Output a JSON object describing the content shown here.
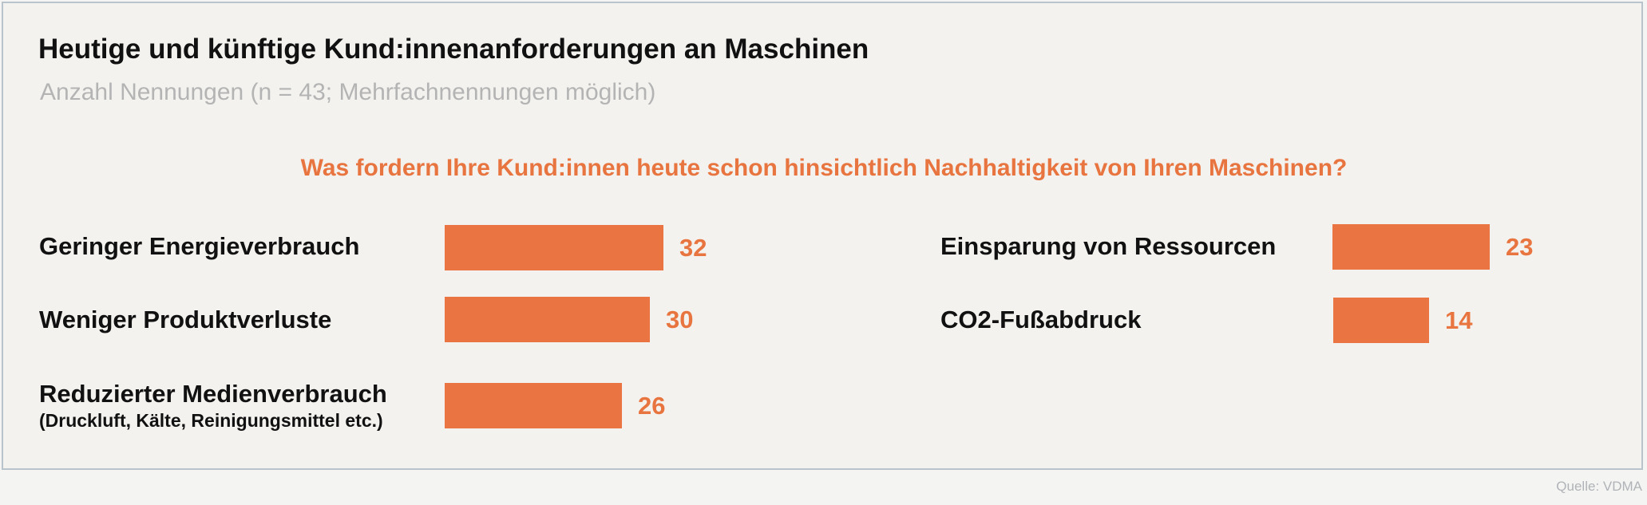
{
  "header": {
    "title": "Heutige und künftige Kund:innenanforderungen an Maschinen",
    "subtitle": "Anzahl Nennungen (n = 43; Mehrfachnennungen möglich)"
  },
  "question": "Was fordern Ihre Kund:innen heute schon hinsichtlich Nachhaltigkeit von Ihren Maschinen?",
  "source": "Quelle: VDMA",
  "colors": {
    "bar": "#ea7543",
    "value_text": "#e8743f"
  },
  "chart_data": {
    "type": "bar",
    "orientation": "horizontal",
    "categories": [
      "Geringer Energieverbrauch",
      "Weniger Produktverluste",
      "Reduzierter Medienverbrauch",
      "Einsparung von Ressourcen",
      "CO2-Fußabdruck"
    ],
    "category_notes": [
      "",
      "",
      "(Druckluft, Kälte, Reinigungsmittel etc.)",
      "",
      ""
    ],
    "values": [
      32,
      30,
      26,
      23,
      14
    ],
    "xlim": [
      0,
      43
    ],
    "title": "Was fordern Ihre Kund:innen heute schon hinsichtlich Nachhaltigkeit von Ihren Maschinen?",
    "grid": false,
    "data_labels": true
  }
}
